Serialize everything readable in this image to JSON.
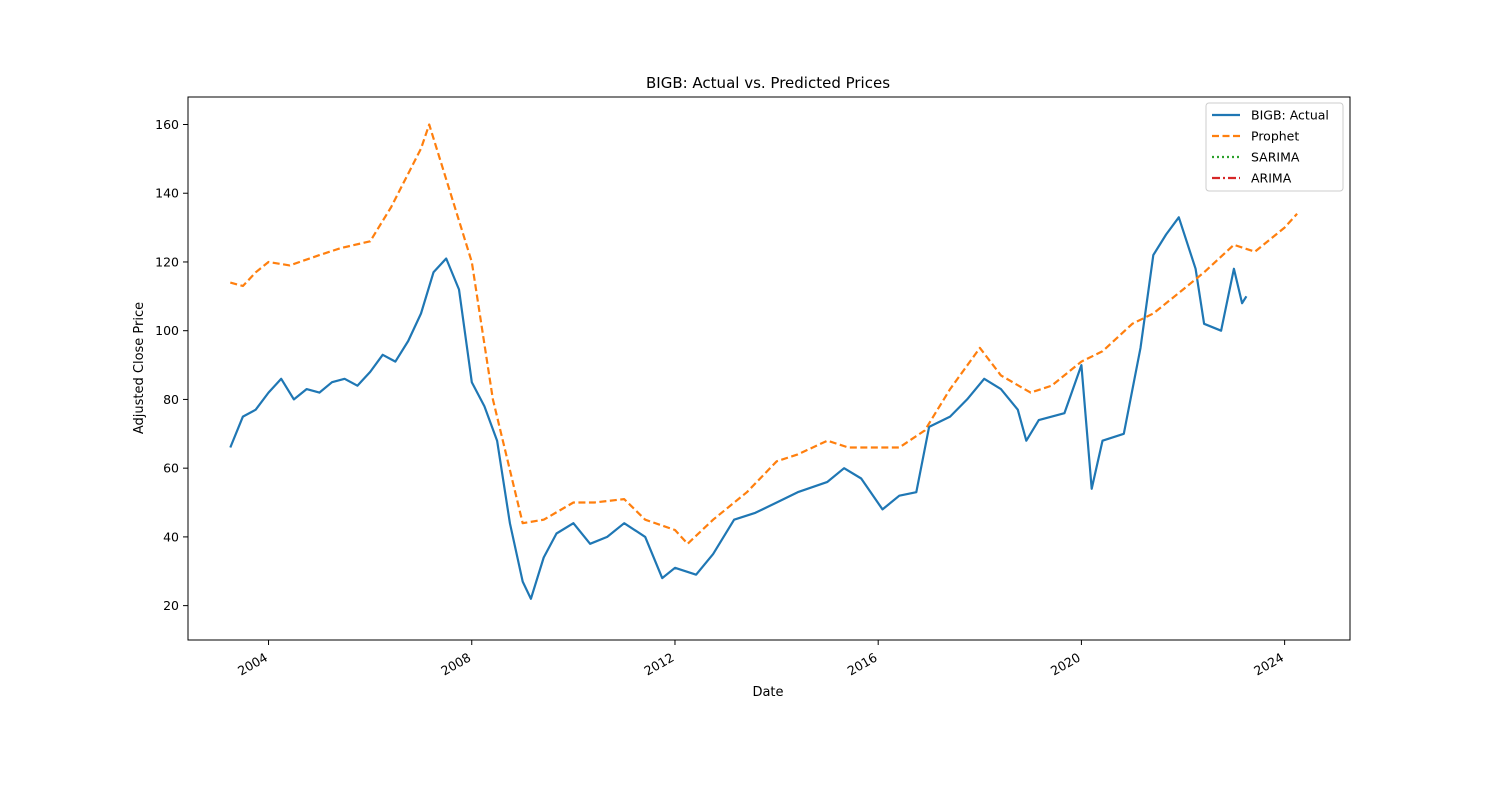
{
  "chart_data": {
    "type": "line",
    "title": "BIGB: Actual vs. Predicted Prices",
    "xlabel": "Date",
    "ylabel": "Adjusted Close Price",
    "xlim": [
      "2002-06-01",
      "2025-04-15"
    ],
    "ylim": [
      10,
      168
    ],
    "x_ticks": [
      "2004",
      "2008",
      "2012",
      "2016",
      "2020",
      "2024"
    ],
    "y_ticks": [
      "20",
      "40",
      "60",
      "80",
      "100",
      "120",
      "140",
      "160"
    ],
    "grid": false,
    "legend_position": "top-right",
    "series": [
      {
        "name": "BIGB: Actual",
        "color": "#1f77b4",
        "style": "solid",
        "points": [
          [
            "2003-04-01",
            66
          ],
          [
            "2003-07-01",
            75
          ],
          [
            "2003-10-01",
            77
          ],
          [
            "2004-01-01",
            82
          ],
          [
            "2004-04-01",
            86
          ],
          [
            "2004-07-01",
            80
          ],
          [
            "2004-10-01",
            83
          ],
          [
            "2005-01-01",
            82
          ],
          [
            "2005-04-01",
            85
          ],
          [
            "2005-07-01",
            86
          ],
          [
            "2005-10-01",
            84
          ],
          [
            "2006-01-01",
            88
          ],
          [
            "2006-04-01",
            93
          ],
          [
            "2006-07-01",
            91
          ],
          [
            "2006-10-01",
            97
          ],
          [
            "2007-01-01",
            105
          ],
          [
            "2007-04-01",
            117
          ],
          [
            "2007-07-01",
            121
          ],
          [
            "2007-10-01",
            112
          ],
          [
            "2008-01-01",
            85
          ],
          [
            "2008-04-01",
            78
          ],
          [
            "2008-07-01",
            68
          ],
          [
            "2008-10-01",
            44
          ],
          [
            "2009-01-01",
            27
          ],
          [
            "2009-03-01",
            22
          ],
          [
            "2009-06-01",
            34
          ],
          [
            "2009-09-01",
            41
          ],
          [
            "2010-01-01",
            44
          ],
          [
            "2010-05-01",
            38
          ],
          [
            "2010-09-01",
            40
          ],
          [
            "2011-01-01",
            44
          ],
          [
            "2011-06-01",
            40
          ],
          [
            "2011-10-01",
            28
          ],
          [
            "2012-01-01",
            31
          ],
          [
            "2012-06-01",
            29
          ],
          [
            "2012-10-01",
            35
          ],
          [
            "2013-03-01",
            45
          ],
          [
            "2013-08-01",
            47
          ],
          [
            "2014-01-01",
            50
          ],
          [
            "2014-06-01",
            53
          ],
          [
            "2015-01-01",
            56
          ],
          [
            "2015-05-01",
            60
          ],
          [
            "2015-09-01",
            57
          ],
          [
            "2016-02-01",
            48
          ],
          [
            "2016-06-01",
            52
          ],
          [
            "2016-10-01",
            53
          ],
          [
            "2017-01-01",
            72
          ],
          [
            "2017-06-01",
            75
          ],
          [
            "2017-10-01",
            80
          ],
          [
            "2018-02-01",
            86
          ],
          [
            "2018-06-01",
            83
          ],
          [
            "2018-10-01",
            77
          ],
          [
            "2018-12-01",
            68
          ],
          [
            "2019-03-01",
            74
          ],
          [
            "2019-09-01",
            76
          ],
          [
            "2020-01-01",
            90
          ],
          [
            "2020-03-15",
            54
          ],
          [
            "2020-06-01",
            68
          ],
          [
            "2020-11-01",
            70
          ],
          [
            "2021-03-01",
            95
          ],
          [
            "2021-06-01",
            122
          ],
          [
            "2021-09-01",
            128
          ],
          [
            "2021-12-01",
            133
          ],
          [
            "2022-04-01",
            118
          ],
          [
            "2022-06-01",
            102
          ],
          [
            "2022-10-01",
            100
          ],
          [
            "2023-01-01",
            118
          ],
          [
            "2023-03-01",
            108
          ],
          [
            "2023-04-01",
            110
          ]
        ]
      },
      {
        "name": "Prophet",
        "color": "#ff7f0e",
        "style": "dashed",
        "points": [
          [
            "2003-04-01",
            114
          ],
          [
            "2003-07-01",
            113
          ],
          [
            "2003-10-01",
            117
          ],
          [
            "2004-01-01",
            120
          ],
          [
            "2004-06-01",
            119
          ],
          [
            "2005-01-01",
            122
          ],
          [
            "2005-06-01",
            124
          ],
          [
            "2006-01-01",
            126
          ],
          [
            "2006-06-01",
            136
          ],
          [
            "2007-01-01",
            153
          ],
          [
            "2007-03-01",
            160
          ],
          [
            "2007-06-01",
            148
          ],
          [
            "2008-01-01",
            120
          ],
          [
            "2008-06-01",
            80
          ],
          [
            "2009-01-01",
            44
          ],
          [
            "2009-06-01",
            45
          ],
          [
            "2010-01-01",
            50
          ],
          [
            "2010-06-01",
            50
          ],
          [
            "2011-01-01",
            51
          ],
          [
            "2011-06-01",
            45
          ],
          [
            "2012-01-01",
            42
          ],
          [
            "2012-04-01",
            38
          ],
          [
            "2012-10-01",
            45
          ],
          [
            "2013-06-01",
            53
          ],
          [
            "2014-01-01",
            62
          ],
          [
            "2014-06-01",
            64
          ],
          [
            "2015-01-01",
            68
          ],
          [
            "2015-06-01",
            66
          ],
          [
            "2016-01-01",
            66
          ],
          [
            "2016-06-01",
            66
          ],
          [
            "2016-12-01",
            71
          ],
          [
            "2017-06-01",
            83
          ],
          [
            "2018-01-01",
            95
          ],
          [
            "2018-06-01",
            87
          ],
          [
            "2019-01-01",
            82
          ],
          [
            "2019-06-01",
            84
          ],
          [
            "2020-01-01",
            91
          ],
          [
            "2020-06-01",
            94
          ],
          [
            "2021-01-01",
            102
          ],
          [
            "2021-06-01",
            105
          ],
          [
            "2022-01-01",
            112
          ],
          [
            "2022-06-01",
            117
          ],
          [
            "2023-01-01",
            125
          ],
          [
            "2023-06-01",
            123
          ],
          [
            "2024-01-01",
            130
          ],
          [
            "2024-03-31",
            134
          ]
        ]
      },
      {
        "name": "SARIMA",
        "color": "#2ca02c",
        "style": "dotted",
        "points": []
      },
      {
        "name": "ARIMA",
        "color": "#d62728",
        "style": "dashdot",
        "points": []
      }
    ]
  }
}
